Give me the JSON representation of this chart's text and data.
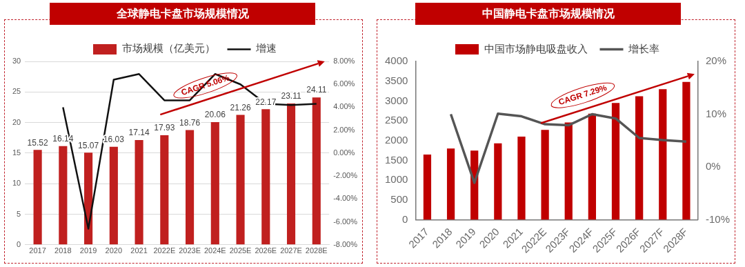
{
  "chart_data": [
    {
      "type": "bar",
      "title": "全球静电卡盘市场规模情况",
      "categories": [
        "2017",
        "2018",
        "2019",
        "2020",
        "2021",
        "2022E",
        "2023E",
        "2024E",
        "2025E",
        "2026E",
        "2027E",
        "2028E"
      ],
      "series": [
        {
          "name": "市场规模（亿美元）",
          "color": "#c0201f",
          "values": [
            15.52,
            16.14,
            15.07,
            16.03,
            17.14,
            17.93,
            18.76,
            20.06,
            21.26,
            22.17,
            23.11,
            24.11
          ],
          "value_labels": [
            "15.52",
            "16.14",
            "15.07",
            "16.03",
            "17.14",
            "17.93",
            "18.76",
            "20.06",
            "21.26",
            "22.17",
            "23.11",
            "24.11"
          ]
        },
        {
          "name": "增速",
          "type": "line",
          "axis": "y2",
          "color": "#111111",
          "values": [
            null,
            4.0,
            -6.6,
            6.4,
            6.9,
            4.6,
            4.6,
            6.9,
            6.0,
            4.3,
            4.2,
            4.3
          ]
        }
      ],
      "ylim": [
        0,
        30
      ],
      "yticks": [
        0,
        5,
        10,
        15,
        20,
        25,
        30
      ],
      "y2lim": [
        -8,
        8
      ],
      "y2ticks": [
        {
          "value": -8,
          "label": "-8.00%"
        },
        {
          "value": -6,
          "label": "-6.00%"
        },
        {
          "value": -4,
          "label": "-4.00%"
        },
        {
          "value": -2,
          "label": "-2.00%"
        },
        {
          "value": 0,
          "label": "0.00%"
        },
        {
          "value": 2,
          "label": "2.00%"
        },
        {
          "value": 4,
          "label": "4.00%"
        },
        {
          "value": 6,
          "label": "6.00%"
        },
        {
          "value": 8,
          "label": "8.00%"
        }
      ],
      "grid": "y",
      "legend": "top",
      "marker": "none",
      "annotations": [
        "CAGR 5.06%"
      ]
    },
    {
      "type": "bar",
      "title": "中国静电卡盘市场规模情况",
      "categories": [
        "2017",
        "2018",
        "2019",
        "2020",
        "2021",
        "2022E",
        "2023F",
        "2024F",
        "2025F",
        "2026F",
        "2027F",
        "2028F"
      ],
      "series": [
        {
          "name": "中国市场静电吸盘收入",
          "color": "#c00000",
          "values": [
            1650,
            1800,
            1750,
            1930,
            2100,
            2270,
            2460,
            2680,
            2950,
            3120,
            3300,
            3480
          ]
        },
        {
          "name": "增长率",
          "type": "line",
          "axis": "y2",
          "color": "#555555",
          "values": [
            null,
            10.0,
            -3.0,
            10.1,
            9.6,
            8.1,
            7.9,
            10.0,
            9.2,
            5.5,
            5.1,
            4.8
          ]
        }
      ],
      "ylim": [
        0,
        4000
      ],
      "yticks": [
        0,
        500,
        1000,
        1500,
        2000,
        2500,
        3000,
        3500,
        4000
      ],
      "y2lim": [
        -10,
        20
      ],
      "y2ticks": [
        {
          "value": -10,
          "label": "-10%"
        },
        {
          "value": 0,
          "label": "0%"
        },
        {
          "value": 10,
          "label": "10%"
        },
        {
          "value": 20,
          "label": "20%"
        }
      ],
      "grid": false,
      "legend": "top",
      "marker": "none",
      "annotations": [
        "CAGR 7.29%"
      ]
    }
  ]
}
